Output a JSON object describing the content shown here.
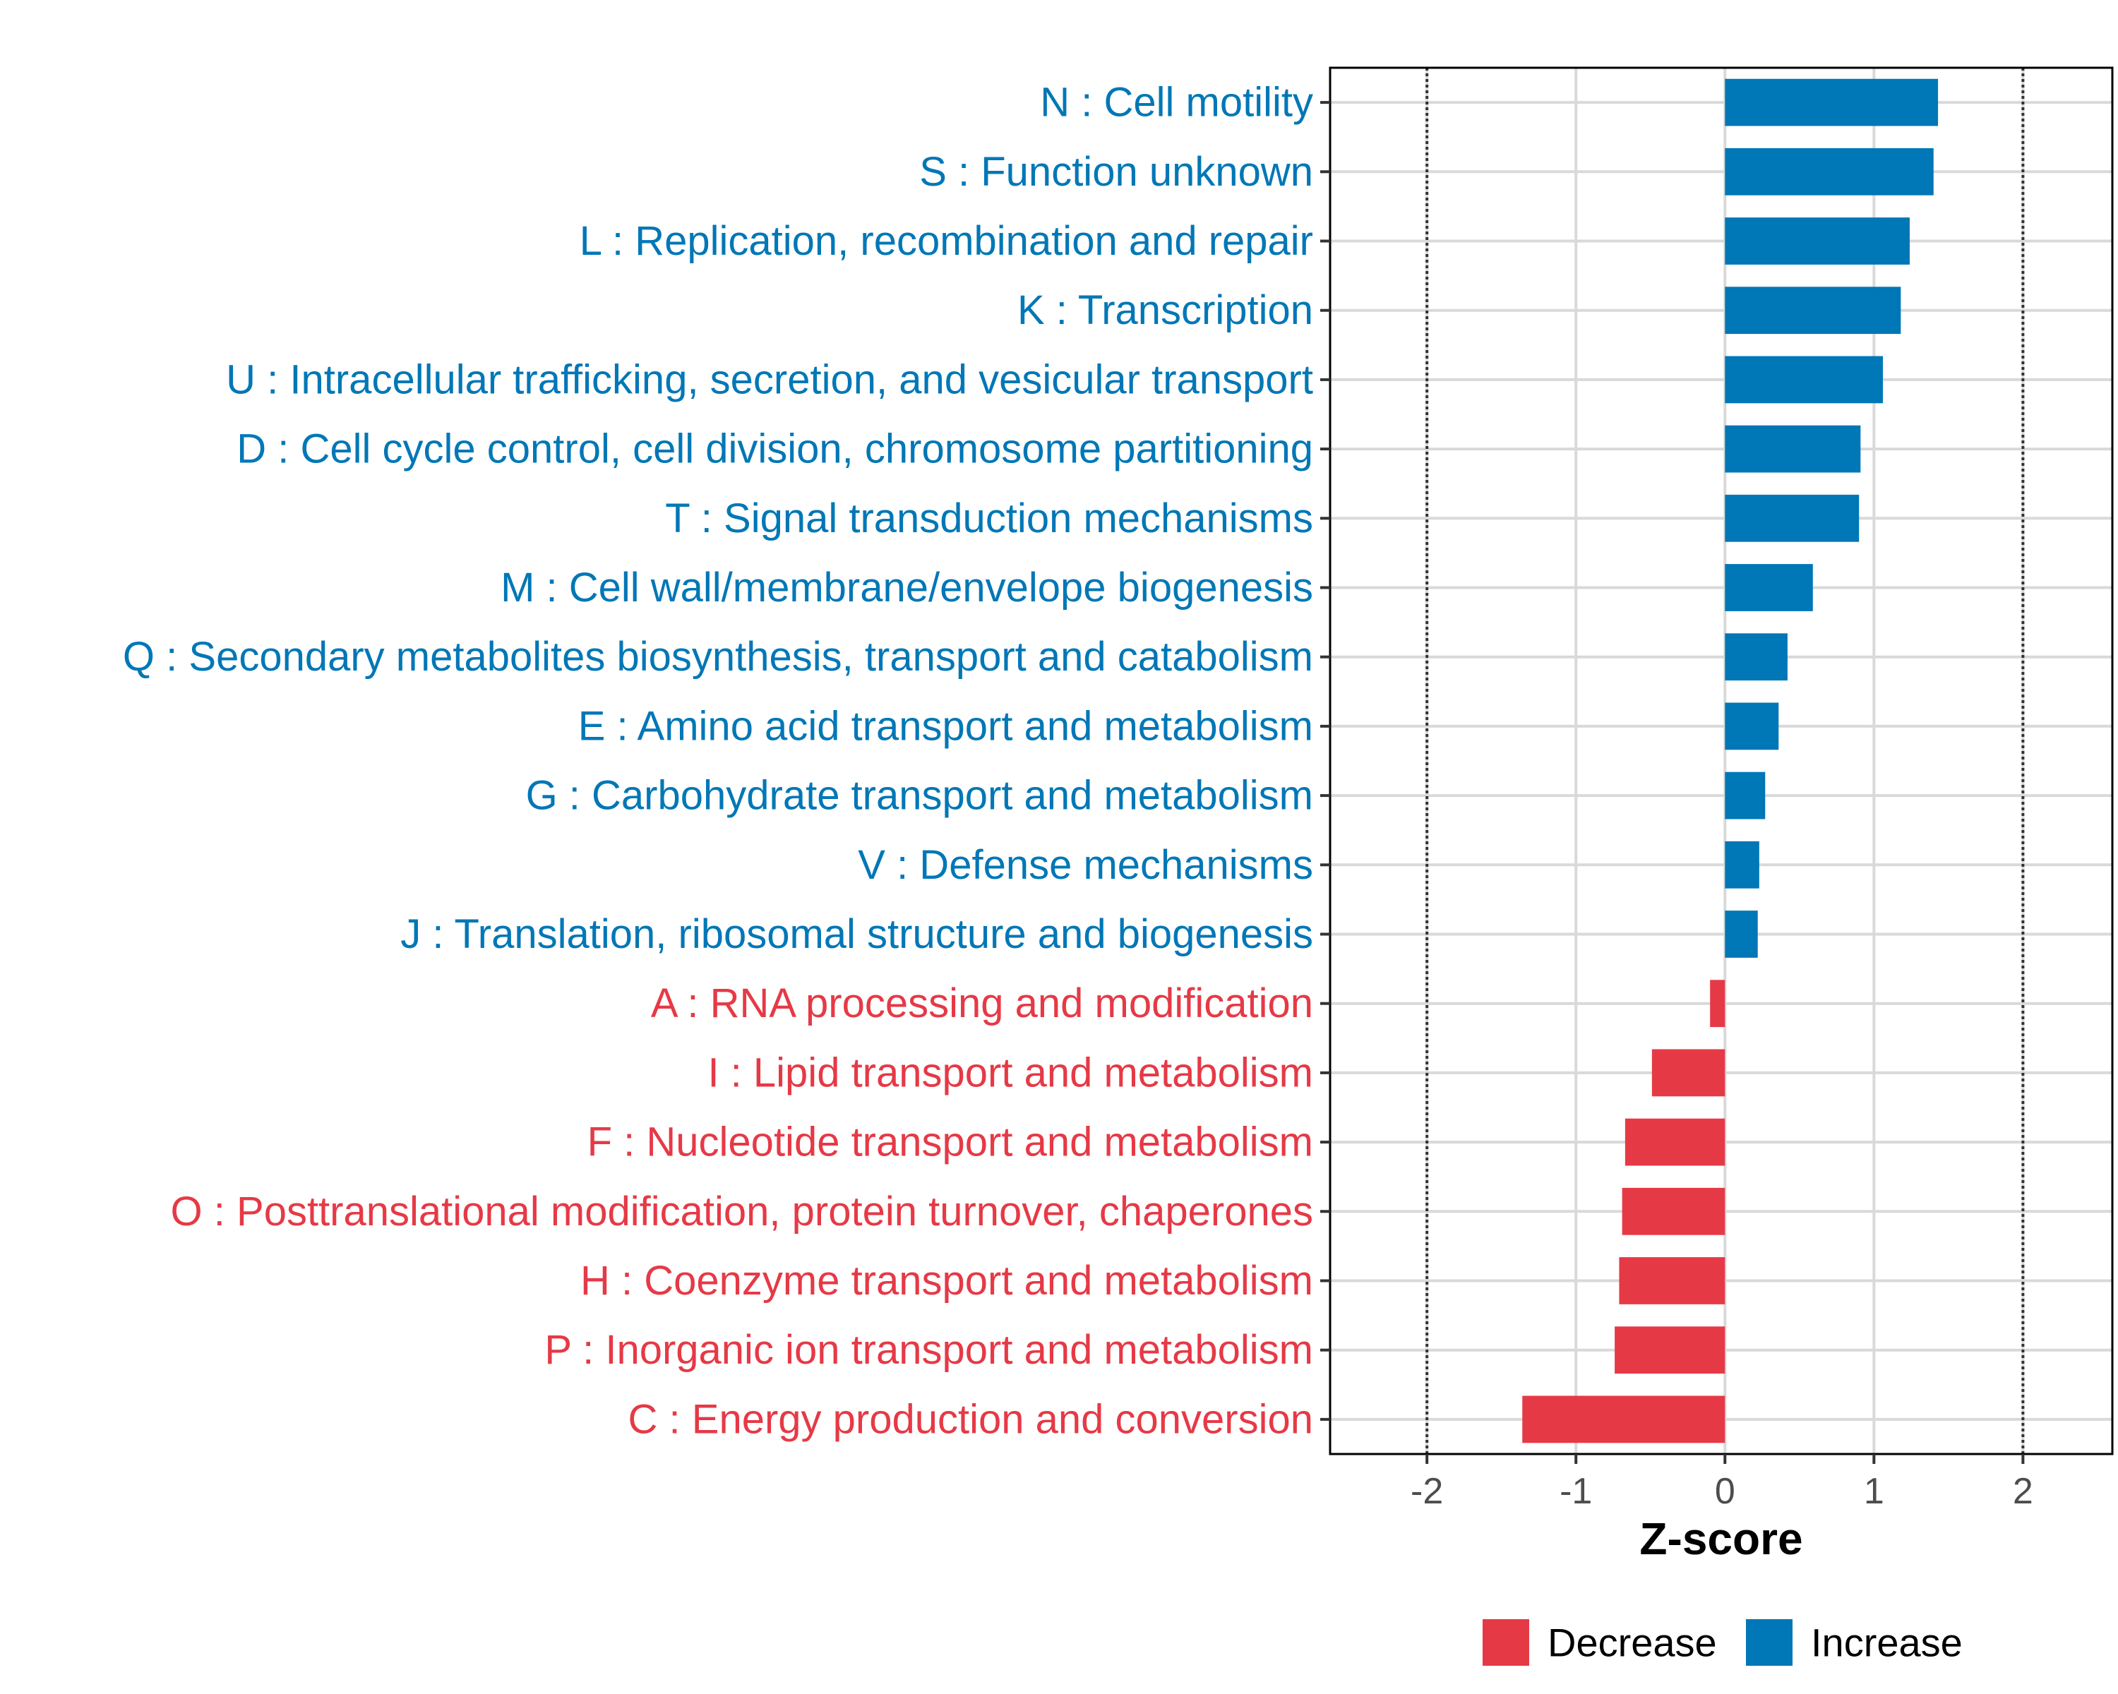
{
  "chart_data": {
    "type": "bar",
    "orientation": "horizontal",
    "xlabel": "Z-score",
    "ylabel": "",
    "xlim": [
      -2.65,
      2.6
    ],
    "x_ticks": [
      -2,
      -1,
      0,
      1,
      2
    ],
    "x_tick_labels": [
      "-2",
      "-1",
      "0",
      "1",
      "2"
    ],
    "reference_lines": [
      -2,
      2
    ],
    "grid": true,
    "legend_position": "bottom",
    "colors": {
      "Decrease": "#e63946",
      "Increase": "#0077b6"
    },
    "categories": [
      "N : Cell motility",
      "S : Function unknown",
      "L : Replication, recombination and repair",
      "K : Transcription",
      "U : Intracellular trafficking, secretion, and vesicular transport",
      "D : Cell cycle control, cell division, chromosome partitioning",
      "T : Signal transduction mechanisms",
      "M : Cell wall/membrane/envelope biogenesis",
      "Q : Secondary metabolites biosynthesis, transport and catabolism",
      "E : Amino acid transport and metabolism",
      "G : Carbohydrate transport and metabolism",
      "V : Defense mechanisms",
      "J : Translation, ribosomal structure and biogenesis",
      "A : RNA processing and modification",
      "I : Lipid transport and metabolism",
      "F : Nucleotide transport and metabolism",
      "O : Posttranslational modification, protein turnover, chaperones",
      "H : Coenzyme transport and metabolism",
      "P : Inorganic ion transport and metabolism",
      "C : Energy production and conversion"
    ],
    "values": [
      1.43,
      1.4,
      1.24,
      1.18,
      1.06,
      0.91,
      0.9,
      0.59,
      0.42,
      0.36,
      0.27,
      0.23,
      0.22,
      -0.1,
      -0.49,
      -0.67,
      -0.69,
      -0.71,
      -0.74,
      -1.36
    ],
    "groups": [
      "Increase",
      "Increase",
      "Increase",
      "Increase",
      "Increase",
      "Increase",
      "Increase",
      "Increase",
      "Increase",
      "Increase",
      "Increase",
      "Increase",
      "Increase",
      "Decrease",
      "Decrease",
      "Decrease",
      "Decrease",
      "Decrease",
      "Decrease",
      "Decrease"
    ],
    "legend": [
      "Decrease",
      "Increase"
    ]
  }
}
